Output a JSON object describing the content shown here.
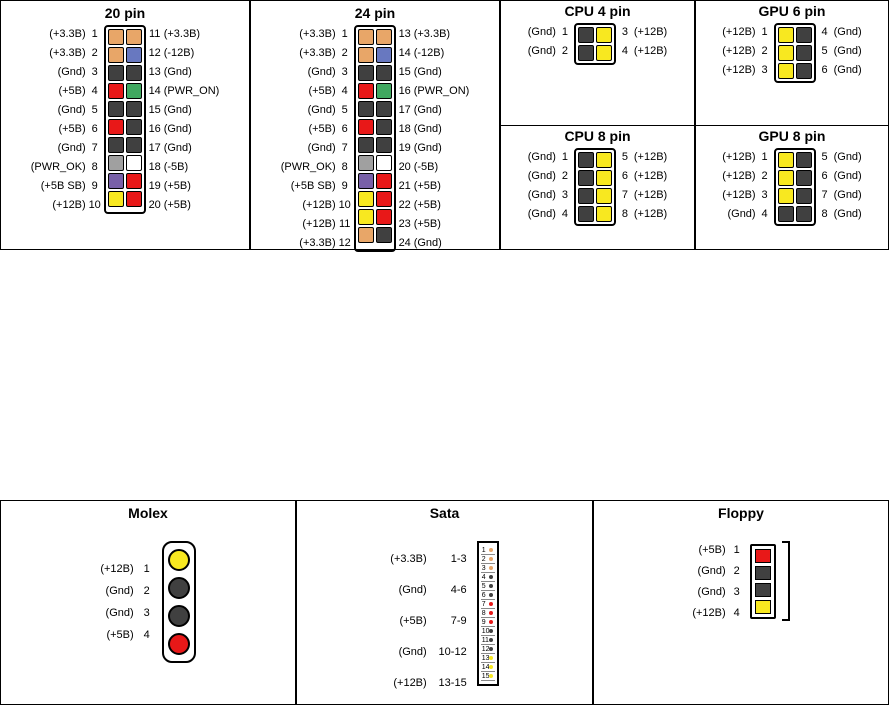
{
  "colors": {
    "orange": "#e8a668",
    "blue": "#6878c0",
    "black": "#404040",
    "red": "#e81818",
    "green": "#40a860",
    "gray": "#a0a0a0",
    "white": "#ffffff",
    "purple": "#7860a8",
    "yellow": "#f8e820"
  },
  "atx20": {
    "title": "20 pin",
    "left": [
      {
        "n": "1",
        "l": "(+3.3B)",
        "c": "orange"
      },
      {
        "n": "2",
        "l": "(+3.3B)",
        "c": "orange"
      },
      {
        "n": "3",
        "l": "(Gnd)",
        "c": "black"
      },
      {
        "n": "4",
        "l": "(+5B)",
        "c": "red"
      },
      {
        "n": "5",
        "l": "(Gnd)",
        "c": "black"
      },
      {
        "n": "6",
        "l": "(+5B)",
        "c": "red"
      },
      {
        "n": "7",
        "l": "(Gnd)",
        "c": "black"
      },
      {
        "n": "8",
        "l": "(PWR_OK)",
        "c": "gray"
      },
      {
        "n": "9",
        "l": "(+5B SB)",
        "c": "purple"
      },
      {
        "n": "10",
        "l": "(+12B)",
        "c": "yellow"
      }
    ],
    "right": [
      {
        "n": "11",
        "l": "(+3.3B)",
        "c": "orange"
      },
      {
        "n": "12",
        "l": "(-12B)",
        "c": "blue"
      },
      {
        "n": "13",
        "l": "(Gnd)",
        "c": "black"
      },
      {
        "n": "14",
        "l": "(PWR_ON)",
        "c": "green"
      },
      {
        "n": "15",
        "l": "(Gnd)",
        "c": "black"
      },
      {
        "n": "16",
        "l": "(Gnd)",
        "c": "black"
      },
      {
        "n": "17",
        "l": "(Gnd)",
        "c": "black"
      },
      {
        "n": "18",
        "l": "(-5B)",
        "c": "white"
      },
      {
        "n": "19",
        "l": "(+5B)",
        "c": "red"
      },
      {
        "n": "20",
        "l": "(+5B)",
        "c": "red"
      }
    ]
  },
  "atx24": {
    "title": "24 pin",
    "left": [
      {
        "n": "1",
        "l": "(+3.3B)",
        "c": "orange"
      },
      {
        "n": "2",
        "l": "(+3.3B)",
        "c": "orange"
      },
      {
        "n": "3",
        "l": "(Gnd)",
        "c": "black"
      },
      {
        "n": "4",
        "l": "(+5B)",
        "c": "red"
      },
      {
        "n": "5",
        "l": "(Gnd)",
        "c": "black"
      },
      {
        "n": "6",
        "l": "(+5B)",
        "c": "red"
      },
      {
        "n": "7",
        "l": "(Gnd)",
        "c": "black"
      },
      {
        "n": "8",
        "l": "(PWR_OK)",
        "c": "gray"
      },
      {
        "n": "9",
        "l": "(+5B SB)",
        "c": "purple"
      },
      {
        "n": "10",
        "l": "(+12B)",
        "c": "yellow"
      },
      {
        "n": "11",
        "l": "(+12B)",
        "c": "yellow"
      },
      {
        "n": "12",
        "l": "(+3.3B)",
        "c": "orange"
      }
    ],
    "right": [
      {
        "n": "13",
        "l": "(+3.3B)",
        "c": "orange"
      },
      {
        "n": "14",
        "l": "(-12B)",
        "c": "blue"
      },
      {
        "n": "15",
        "l": "(Gnd)",
        "c": "black"
      },
      {
        "n": "16",
        "l": "(PWR_ON)",
        "c": "green"
      },
      {
        "n": "17",
        "l": "(Gnd)",
        "c": "black"
      },
      {
        "n": "18",
        "l": "(Gnd)",
        "c": "black"
      },
      {
        "n": "19",
        "l": "(Gnd)",
        "c": "black"
      },
      {
        "n": "20",
        "l": "(-5B)",
        "c": "white"
      },
      {
        "n": "21",
        "l": "(+5B)",
        "c": "red"
      },
      {
        "n": "22",
        "l": "(+5B)",
        "c": "red"
      },
      {
        "n": "23",
        "l": "(+5B)",
        "c": "red"
      },
      {
        "n": "24",
        "l": "(Gnd)",
        "c": "black"
      }
    ]
  },
  "cpu4": {
    "title": "CPU 4 pin",
    "left": [
      {
        "n": "1",
        "l": "(Gnd)",
        "c": "black"
      },
      {
        "n": "2",
        "l": "(Gnd)",
        "c": "black"
      }
    ],
    "right": [
      {
        "n": "3",
        "l": "(+12B)",
        "c": "yellow"
      },
      {
        "n": "4",
        "l": "(+12B)",
        "c": "yellow"
      }
    ]
  },
  "cpu8": {
    "title": "CPU 8 pin",
    "left": [
      {
        "n": "1",
        "l": "(Gnd)",
        "c": "black"
      },
      {
        "n": "2",
        "l": "(Gnd)",
        "c": "black"
      },
      {
        "n": "3",
        "l": "(Gnd)",
        "c": "black"
      },
      {
        "n": "4",
        "l": "(Gnd)",
        "c": "black"
      }
    ],
    "right": [
      {
        "n": "5",
        "l": "(+12B)",
        "c": "yellow"
      },
      {
        "n": "6",
        "l": "(+12B)",
        "c": "yellow"
      },
      {
        "n": "7",
        "l": "(+12B)",
        "c": "yellow"
      },
      {
        "n": "8",
        "l": "(+12B)",
        "c": "yellow"
      }
    ]
  },
  "gpu6": {
    "title": "GPU 6 pin",
    "left": [
      {
        "n": "1",
        "l": "(+12B)",
        "c": "yellow"
      },
      {
        "n": "2",
        "l": "(+12B)",
        "c": "yellow"
      },
      {
        "n": "3",
        "l": "(+12B)",
        "c": "yellow"
      }
    ],
    "right": [
      {
        "n": "4",
        "l": "(Gnd)",
        "c": "black"
      },
      {
        "n": "5",
        "l": "(Gnd)",
        "c": "black"
      },
      {
        "n": "6",
        "l": "(Gnd)",
        "c": "black"
      }
    ]
  },
  "gpu8": {
    "title": "GPU 8 pin",
    "left": [
      {
        "n": "1",
        "l": "(+12B)",
        "c": "yellow"
      },
      {
        "n": "2",
        "l": "(+12B)",
        "c": "yellow"
      },
      {
        "n": "3",
        "l": "(+12B)",
        "c": "yellow"
      },
      {
        "n": "4",
        "l": "(Gnd)",
        "c": "black"
      }
    ],
    "right": [
      {
        "n": "5",
        "l": "(Gnd)",
        "c": "black"
      },
      {
        "n": "6",
        "l": "(Gnd)",
        "c": "black"
      },
      {
        "n": "7",
        "l": "(Gnd)",
        "c": "black"
      },
      {
        "n": "8",
        "l": "(Gnd)",
        "c": "black"
      }
    ]
  },
  "molex": {
    "title": "Molex",
    "pins": [
      {
        "n": "1",
        "l": "(+12B)",
        "c": "yellow"
      },
      {
        "n": "2",
        "l": "(Gnd)",
        "c": "black"
      },
      {
        "n": "3",
        "l": "(Gnd)",
        "c": "black"
      },
      {
        "n": "4",
        "l": "(+5B)",
        "c": "red"
      }
    ]
  },
  "sata": {
    "title": "Sata",
    "groups": [
      {
        "l": "(+3.3B)",
        "r": "1-3",
        "c": "orange",
        "pins": [
          1,
          2,
          3
        ]
      },
      {
        "l": "(Gnd)",
        "r": "4-6",
        "c": "black",
        "pins": [
          4,
          5,
          6
        ]
      },
      {
        "l": "(+5B)",
        "r": "7-9",
        "c": "red",
        "pins": [
          7,
          8,
          9
        ]
      },
      {
        "l": "(Gnd)",
        "r": "10-12",
        "c": "black",
        "pins": [
          10,
          11,
          12
        ]
      },
      {
        "l": "(+12B)",
        "r": "13-15",
        "c": "yellow",
        "pins": [
          13,
          14,
          15
        ]
      }
    ]
  },
  "floppy": {
    "title": "Floppy",
    "pins": [
      {
        "n": "1",
        "l": "(+5B)",
        "c": "red"
      },
      {
        "n": "2",
        "l": "(Gnd)",
        "c": "black"
      },
      {
        "n": "3",
        "l": "(Gnd)",
        "c": "black"
      },
      {
        "n": "4",
        "l": "(+12B)",
        "c": "yellow"
      }
    ]
  }
}
